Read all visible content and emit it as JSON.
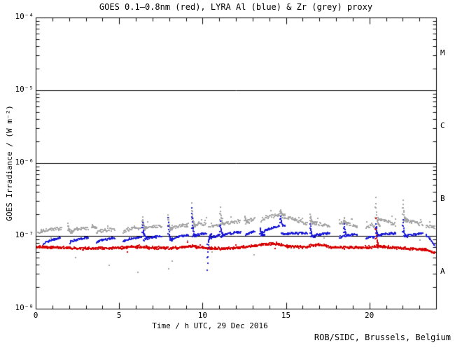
{
  "page": {
    "background": "#ffffff"
  },
  "chart_data": {
    "type": "scatter",
    "title": "GOES 0.1–0.8nm (red), LYRA Al (blue) & Zr (grey) proxy",
    "xlabel": "Time / h UTC, 29 Dec 2016",
    "ylabel": "GOES Irradiance / (W m⁻²)",
    "footer": "ROB/SIDC, Brussels, Belgium",
    "grid": false,
    "legend": "encoded in title (red/blue/grey)",
    "x_axis": {
      "unit": "hours UTC",
      "min_hours": 0,
      "max_hours": 24,
      "minor_tick_step_hours": 1,
      "major_ticks": [
        {
          "value": 0,
          "label": "0"
        },
        {
          "value": 5,
          "label": "5"
        },
        {
          "value": 10,
          "label": "10"
        },
        {
          "value": 15,
          "label": "15"
        },
        {
          "value": 20,
          "label": "20"
        }
      ]
    },
    "y_axis": {
      "scale": "log",
      "min_exp": -8,
      "max_exp": -4,
      "ticks": [
        {
          "exp": -4,
          "label": "10⁻⁴"
        },
        {
          "exp": -5,
          "label": "10⁻⁵"
        },
        {
          "exp": -6,
          "label": "10⁻⁶"
        },
        {
          "exp": -7,
          "label": "10⁻⁷"
        },
        {
          "exp": -8,
          "label": "10⁻⁸"
        }
      ]
    },
    "reference_lines": [
      {
        "exp": -5
      },
      {
        "exp": -6
      },
      {
        "exp": -7
      }
    ],
    "flare_classes": [
      {
        "label": "M",
        "center_exp": -4.5
      },
      {
        "label": "C",
        "center_exp": -5.5
      },
      {
        "label": "B",
        "center_exp": -6.5
      },
      {
        "label": "A",
        "center_exp": -7.5
      }
    ],
    "colors": {
      "goes": "#d80000",
      "lyra_al": "#1a1ad8",
      "lyra_zr": "#a4a4a4",
      "axis": "#000000"
    },
    "series": [
      {
        "id": "goes",
        "name": "GOES 0.1-0.8nm (red)",
        "color_key": "goes",
        "kind": "baseline",
        "cadence_h": 0.025,
        "noise_rel": 0.05,
        "anchors": [
          [
            0.0,
            7.2e-08
          ],
          [
            1.5,
            7e-08
          ],
          [
            3.0,
            6.9e-08
          ],
          [
            5.0,
            7e-08
          ],
          [
            6.2,
            7.3e-08
          ],
          [
            7.0,
            7e-08
          ],
          [
            8.5,
            7e-08
          ],
          [
            9.3,
            7.4e-08
          ],
          [
            10.0,
            7e-08
          ],
          [
            11.0,
            6.8e-08
          ],
          [
            12.0,
            7e-08
          ],
          [
            12.8,
            7.3e-08
          ],
          [
            13.6,
            7.8e-08
          ],
          [
            14.3,
            8e-08
          ],
          [
            15.0,
            7.4e-08
          ],
          [
            16.0,
            7.1e-08
          ],
          [
            16.9,
            7.8e-08
          ],
          [
            17.6,
            7.2e-08
          ],
          [
            18.5,
            7e-08
          ],
          [
            19.5,
            7.1e-08
          ],
          [
            20.2,
            7.2e-08
          ],
          [
            20.6,
            7.3e-08
          ],
          [
            21.5,
            7e-08
          ],
          [
            22.5,
            6.8e-08
          ],
          [
            23.3,
            6.6e-08
          ],
          [
            23.9,
            6e-08
          ]
        ],
        "spikes": [
          {
            "t": 20.34,
            "peak": 1.8e-07
          }
        ]
      },
      {
        "id": "lyra_al",
        "name": "LYRA Al proxy (blue)",
        "color_key": "lyra_al",
        "kind": "segments",
        "cadence_h": 0.035,
        "noise_rel": 0.03,
        "segments": [
          [
            0.42,
            1.45,
            7.8e-08,
            9.5e-08
          ],
          [
            2.0,
            3.1,
            8.2e-08,
            9.7e-08
          ],
          [
            3.6,
            4.7,
            8.2e-08,
            9.6e-08
          ],
          [
            5.2,
            6.32,
            8.5e-08,
            9.9e-08
          ],
          [
            6.42,
            7.52,
            8.8e-08,
            1.02e-07
          ],
          [
            8.02,
            9.14,
            8.8e-08,
            1.05e-07
          ],
          [
            9.36,
            10.22,
            1e-07,
            1.1e-07
          ],
          [
            10.32,
            11.02,
            9e-08,
            1.05e-07
          ],
          [
            11.08,
            12.24,
            1e-07,
            1.16e-07
          ],
          [
            12.55,
            13.1,
            1.02e-07,
            1.18e-07
          ],
          [
            13.45,
            14.58,
            1.05e-07,
            1.4e-07
          ],
          [
            14.7,
            16.25,
            1.08e-07,
            1.12e-07
          ],
          [
            16.45,
            17.6,
            9.8e-08,
            1.12e-07
          ],
          [
            18.15,
            19.25,
            9.6e-08,
            1.08e-07
          ],
          [
            19.75,
            20.28,
            9.4e-08,
            1e-07
          ],
          [
            20.42,
            21.55,
            1.02e-07,
            1.12e-07
          ],
          [
            22.02,
            23.15,
            1e-07,
            1.1e-07
          ],
          [
            23.35,
            23.95,
            1.05e-07,
            7e-08
          ]
        ],
        "spikes": [
          {
            "t": 6.36,
            "peak": 1.55e-07
          },
          {
            "t": 7.9,
            "peak": 1.8e-07
          },
          {
            "t": 9.32,
            "peak": 2.5e-07
          },
          {
            "t": 10.25,
            "peak": 3.4e-08,
            "down": true
          },
          {
            "t": 11.02,
            "peak": 1.6e-07
          },
          {
            "t": 13.42,
            "peak": 1.3e-07
          },
          {
            "t": 14.63,
            "peak": 1.95e-07
          },
          {
            "t": 16.42,
            "peak": 1.5e-07
          },
          {
            "t": 18.45,
            "peak": 1.5e-07
          },
          {
            "t": 20.36,
            "peak": 1.5e-07
          },
          {
            "t": 21.97,
            "peak": 1.7e-07
          }
        ]
      },
      {
        "id": "lyra_zr",
        "name": "LYRA Zr proxy (grey)",
        "color_key": "lyra_zr",
        "kind": "segments",
        "cadence_h": 0.035,
        "noise_rel": 0.05,
        "segments": [
          [
            0.1,
            1.5,
            1.12e-07,
            1.3e-07
          ],
          [
            2.0,
            3.1,
            1.12e-07,
            1.32e-07
          ],
          [
            3.6,
            4.7,
            1.1e-07,
            1.28e-07
          ],
          [
            5.2,
            6.32,
            1.15e-07,
            1.32e-07
          ],
          [
            6.42,
            7.52,
            1.25e-07,
            1.4e-07
          ],
          [
            8.02,
            9.14,
            1.25e-07,
            1.45e-07
          ],
          [
            9.36,
            10.22,
            1.4e-07,
            1.5e-07
          ],
          [
            10.32,
            12.24,
            1.3e-07,
            1.6e-07
          ],
          [
            12.55,
            13.1,
            1.55e-07,
            1.75e-07
          ],
          [
            13.45,
            14.58,
            1.6e-07,
            2e-07
          ],
          [
            14.7,
            16.25,
            1.9e-07,
            1.5e-07
          ],
          [
            16.45,
            17.6,
            1.55e-07,
            1.4e-07
          ],
          [
            18.15,
            19.25,
            1.55e-07,
            1.4e-07
          ],
          [
            19.75,
            20.28,
            1.35e-07,
            1.4e-07
          ],
          [
            20.42,
            21.55,
            1.75e-07,
            1.45e-07
          ],
          [
            22.02,
            23.15,
            1.7e-07,
            1.45e-07
          ],
          [
            23.35,
            23.95,
            1.4e-07,
            1.33e-07
          ]
        ],
        "spikes": [
          {
            "t": 1.9,
            "peak": 1.5e-07
          },
          {
            "t": 3.35,
            "peak": 1.45e-07
          },
          {
            "t": 6.36,
            "peak": 1.85e-07
          },
          {
            "t": 7.9,
            "peak": 2e-07
          },
          {
            "t": 9.32,
            "peak": 2.9e-07
          },
          {
            "t": 11.02,
            "peak": 2.5e-07
          },
          {
            "t": 12.5,
            "peak": 1.9e-07
          },
          {
            "t": 14.63,
            "peak": 2.3e-07
          },
          {
            "t": 16.42,
            "peak": 2e-07
          },
          {
            "t": 18.45,
            "peak": 1.8e-07
          },
          {
            "t": 20.34,
            "peak": 3.4e-07
          },
          {
            "t": 21.97,
            "peak": 3.1e-07
          }
        ],
        "outliers": [
          [
            0.9,
            9.5e-08
          ],
          [
            2.35,
            5.2e-08
          ],
          [
            4.35,
            4e-08
          ],
          [
            6.1,
            3.2e-08
          ],
          [
            7.92,
            3.6e-08
          ],
          [
            8.15,
            4.6e-08
          ],
          [
            9.05,
            8.8e-08
          ],
          [
            10.55,
            6.2e-08
          ],
          [
            13.05,
            5.6e-08
          ],
          [
            17.25,
            9.6e-08
          ],
          [
            21.3,
            1.9e-07
          ],
          [
            23.0,
            9e-08
          ]
        ]
      }
    ]
  }
}
